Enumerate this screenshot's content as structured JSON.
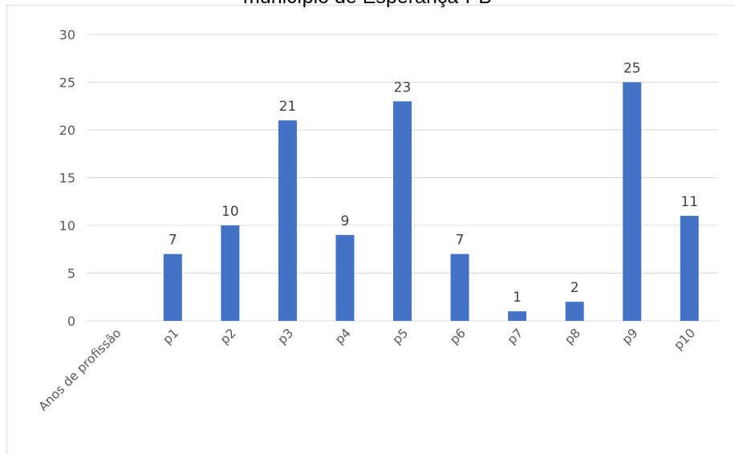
{
  "chart_data": {
    "type": "bar",
    "title": "município de Esperança-PB",
    "xlabel": "",
    "ylabel": "",
    "categories": [
      "Anos de profissão",
      "p1",
      "p2",
      "p3",
      "p4",
      "p5",
      "p6",
      "p7",
      "p8",
      "p9",
      "p10"
    ],
    "values": [
      null,
      7,
      10,
      21,
      9,
      23,
      7,
      1,
      2,
      25,
      11
    ],
    "ylim": [
      0,
      30
    ],
    "yticks": [
      0,
      5,
      10,
      15,
      20,
      25,
      30
    ],
    "grid": true,
    "legend": "none",
    "data_labels": true,
    "bar_color": "#4472C4",
    "grid_color": "#d9d9d9",
    "text_color": "#595959"
  }
}
